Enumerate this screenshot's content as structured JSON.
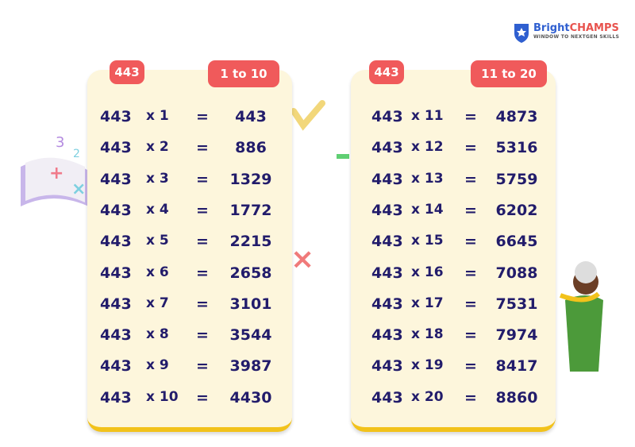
{
  "logo": {
    "name_parts": [
      "Bright",
      "CHAMPS"
    ],
    "tagline": "WINDOW TO NEXTGEN SKILLS"
  },
  "cards": [
    {
      "tag": "443",
      "range": "1 to 10",
      "rows": [
        [
          "443",
          "x 1",
          "=",
          "443"
        ],
        [
          "443",
          "x 2",
          "=",
          "886"
        ],
        [
          "443",
          "x 3",
          "=",
          "1329"
        ],
        [
          "443",
          "x 4",
          "=",
          "1772"
        ],
        [
          "443",
          "x 5",
          "=",
          "2215"
        ],
        [
          "443",
          "x 6",
          "=",
          "2658"
        ],
        [
          "443",
          "x 7",
          "=",
          "3101"
        ],
        [
          "443",
          "x 8",
          "=",
          "3544"
        ],
        [
          "443",
          "x 9",
          "=",
          "3987"
        ],
        [
          "443",
          "x 10",
          "=",
          "4430"
        ]
      ]
    },
    {
      "tag": "443",
      "range": "11 to 20",
      "rows": [
        [
          "443",
          "x 11",
          "=",
          "4873"
        ],
        [
          "443",
          "x 12",
          "=",
          "5316"
        ],
        [
          "443",
          "x 13",
          "=",
          "5759"
        ],
        [
          "443",
          "x 14",
          "=",
          "6202"
        ],
        [
          "443",
          "x 15",
          "=",
          "6645"
        ],
        [
          "443",
          "x 16",
          "=",
          "7088"
        ],
        [
          "443",
          "x 17",
          "=",
          "7531"
        ],
        [
          "443",
          "x 18",
          "=",
          "7974"
        ],
        [
          "443",
          "x 19",
          "=",
          "8417"
        ],
        [
          "443",
          "x 20",
          "=",
          "8860"
        ]
      ]
    }
  ]
}
